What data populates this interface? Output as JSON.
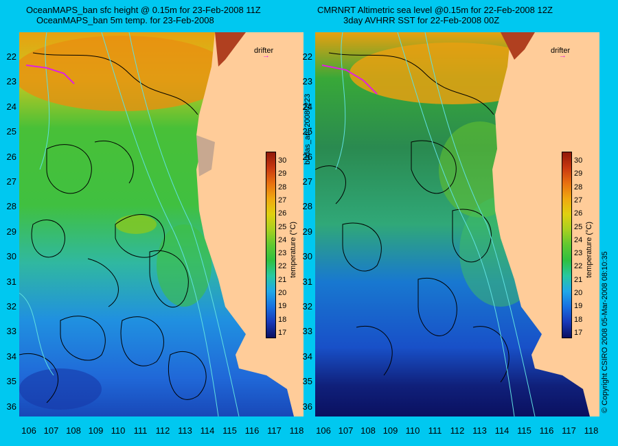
{
  "left_panel": {
    "title_line1": "OceanMAPS_ban sfc height @ 0.15m for 23-Feb-2008 11Z",
    "title_line2": "OceanMAPS_ban 5m temp. for 23-Feb-2008"
  },
  "right_panel": {
    "title_line1": "CMRNRT Altimetric sea level  @0.15m  for 22-Feb-2008 12Z",
    "title_line2": "3day AVHRR SST for 22-Feb-2008 00Z"
  },
  "lat_ticks": [
    "22",
    "23",
    "24",
    "25",
    "26",
    "27",
    "28",
    "29",
    "30",
    "31",
    "32",
    "33",
    "34",
    "35",
    "36"
  ],
  "lon_ticks": [
    "106",
    "107",
    "108",
    "109",
    "110",
    "111",
    "112",
    "113",
    "114",
    "115",
    "116",
    "117",
    "118"
  ],
  "legend": {
    "drifter_label": "drifter",
    "colorbar_title": "temperature (°C)",
    "colorbar_ticks": [
      "30",
      "29",
      "28",
      "27",
      "26",
      "25",
      "24",
      "23",
      "22",
      "21",
      "20",
      "19",
      "18",
      "17"
    ],
    "colorbar_colors": [
      "#0a1060",
      "#1838b8",
      "#1870e0",
      "#20a8e8",
      "#28c8a0",
      "#30c040",
      "#60c830",
      "#a8d020",
      "#e0d010",
      "#f0a810",
      "#e87010",
      "#c83810",
      "#901808"
    ]
  },
  "side_text_left": "bodas_an_20080223",
  "side_text_right": "© Copyright CSIRO 2008   05-Mar-2008 08:10:35",
  "colors": {
    "background": "#00c8f0",
    "land": "#ffcc99",
    "contour": "#000000",
    "bathymetry": "#60e0e0",
    "drifter": "#e020e0"
  }
}
